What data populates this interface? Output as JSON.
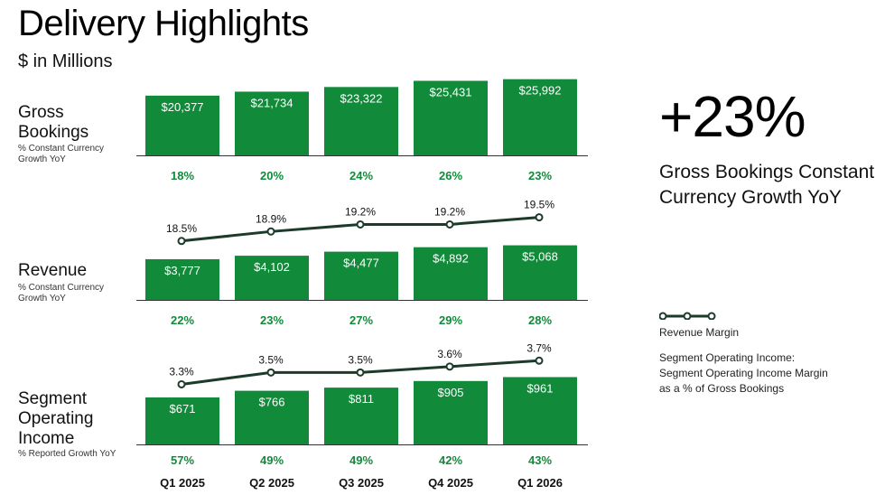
{
  "header": {
    "title": "Delivery Highlights",
    "subtitle": "$ in Millions"
  },
  "rows": {
    "gross_bookings": {
      "label_lines": [
        "Gross",
        "Bookings"
      ],
      "sub_lines": [
        "% Constant Currency",
        "Growth YoY"
      ]
    },
    "revenue": {
      "label_lines": [
        "Revenue"
      ],
      "sub_lines": [
        "% Constant Currency",
        "Growth YoY"
      ]
    },
    "soi": {
      "label_lines": [
        "Segment",
        "Operating",
        "Income"
      ],
      "sub_lines": [
        "% Reported Growth YoY"
      ]
    }
  },
  "highlight": {
    "value": "+23%",
    "label_lines": [
      "Gross Bookings Constant",
      "Currency Growth YoY"
    ]
  },
  "legend": {
    "line_label": "Revenue Margin",
    "note_lines": [
      "Segment Operating Income:",
      "Segment Operating Income Margin",
      "as a % of Gross Bookings"
    ]
  },
  "colors": {
    "bar": "#118a3a",
    "growth_text": "#118a3a",
    "line": "#1c3b2a",
    "axis": "#333333"
  },
  "chart_data": [
    {
      "type": "bar",
      "categories": [
        "Q1 2025",
        "Q2 2025",
        "Q3 2025",
        "Q4 2025",
        "Q1 2026"
      ],
      "values": [
        20377,
        21734,
        23322,
        25431,
        25992
      ],
      "value_labels": [
        "$20,377",
        "$21,734",
        "$23,322",
        "$25,431",
        "$25,992"
      ],
      "growth_labels": [
        "18%",
        "20%",
        "24%",
        "26%",
        "23%"
      ],
      "ylim": [
        0,
        26500
      ]
    },
    {
      "type": "bar",
      "categories": [
        "Q1 2025",
        "Q2 2025",
        "Q3 2025",
        "Q4 2025",
        "Q1 2026"
      ],
      "values": [
        3777,
        4102,
        4477,
        4892,
        5068
      ],
      "value_labels": [
        "$3,777",
        "$4,102",
        "$4,477",
        "$4,892",
        "$5,068"
      ],
      "growth_labels": [
        "22%",
        "23%",
        "27%",
        "29%",
        "28%"
      ],
      "ylim": [
        0,
        5200
      ],
      "line": {
        "values": [
          18.5,
          18.9,
          19.2,
          19.2,
          19.5
        ],
        "labels": [
          "18.5%",
          "18.9%",
          "19.2%",
          "19.2%",
          "19.5%"
        ],
        "ylim": [
          18.3,
          19.6
        ]
      }
    },
    {
      "type": "bar",
      "categories": [
        "Q1 2025",
        "Q2 2025",
        "Q3 2025",
        "Q4 2025",
        "Q1 2026"
      ],
      "values": [
        671,
        766,
        811,
        905,
        961
      ],
      "value_labels": [
        "$671",
        "$766",
        "$811",
        "$905",
        "$961"
      ],
      "growth_labels": [
        "57%",
        "49%",
        "49%",
        "42%",
        "43%"
      ],
      "ylim": [
        0,
        980
      ],
      "line": {
        "values": [
          3.3,
          3.5,
          3.5,
          3.6,
          3.7
        ],
        "labels": [
          "3.3%",
          "3.5%",
          "3.5%",
          "3.6%",
          "3.7%"
        ],
        "ylim": [
          3.2,
          3.75
        ]
      }
    }
  ]
}
